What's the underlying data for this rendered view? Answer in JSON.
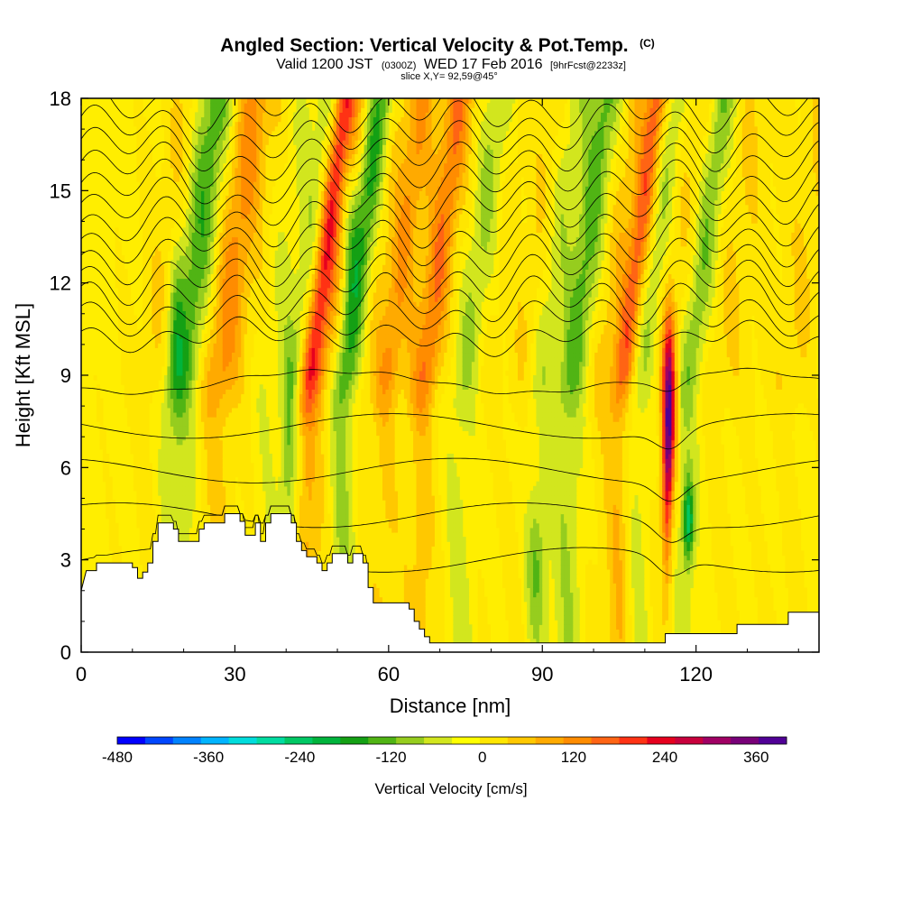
{
  "chart_data": {
    "type": "heatmap",
    "title": "Angled Section: Vertical Velocity & Pot.Temp.",
    "title_mark": "(C)",
    "subtitle_parts": [
      "Valid 1200 JST",
      "(0300Z)",
      "WED 17 Feb 2016",
      "[9hrFcst@2233z]"
    ],
    "slice_note": "slice X,Y= 92,59@45°",
    "xlabel": "Distance [nm]",
    "ylabel": "Height [Kft MSL]",
    "xlim": [
      0,
      144
    ],
    "ylim": [
      0,
      18
    ],
    "xticks": [
      0,
      30,
      60,
      90,
      120
    ],
    "yticks": [
      0,
      3,
      6,
      9,
      12,
      15,
      18
    ],
    "fill_variable": "Vertical Velocity [cm/s]",
    "contour_variable": "Potential temperature",
    "colorbar": {
      "title": "Vertical Velocity [cm/s]",
      "min": -480,
      "max": 400,
      "step": 40,
      "tick_labels": [
        -480,
        -360,
        -240,
        -120,
        0,
        120,
        240,
        360
      ],
      "colors": [
        "#0000ff",
        "#0046ff",
        "#0082ff",
        "#00b4ff",
        "#00dcdc",
        "#00dca0",
        "#00c864",
        "#00b43c",
        "#14a014",
        "#50b414",
        "#96cd1e",
        "#d2e61e",
        "#ffff00",
        "#ffe600",
        "#ffc800",
        "#ffaa00",
        "#ff8c00",
        "#ff6414",
        "#ff3214",
        "#e6001e",
        "#c8003c",
        "#a00064",
        "#780078",
        "#500096"
      ]
    },
    "bands": [
      {
        "x": 8,
        "w": 4,
        "v": 20
      },
      {
        "x": 13,
        "w": 3,
        "v": 60
      },
      {
        "x": 19,
        "w": 3.5,
        "v": -130
      },
      {
        "x": 24,
        "w": 2.5,
        "v": 70
      },
      {
        "x": 27,
        "w": 2.8,
        "v": 130
      },
      {
        "x": 31,
        "w": 3,
        "v": 40
      },
      {
        "x": 36,
        "w": 3,
        "v": -20
      },
      {
        "x": 41,
        "w": 2.5,
        "v": -60
      },
      {
        "x": 44,
        "w": 2.2,
        "v": 260
      },
      {
        "x": 47,
        "w": 2,
        "v": 80
      },
      {
        "x": 51,
        "w": 2.5,
        "v": -150
      },
      {
        "x": 55,
        "w": 2.5,
        "v": 60
      },
      {
        "x": 59,
        "w": 2.5,
        "v": 140
      },
      {
        "x": 63,
        "w": 2.5,
        "v": 60
      },
      {
        "x": 66.5,
        "w": 2.5,
        "v": 170
      },
      {
        "x": 70,
        "w": 2.5,
        "v": 30
      },
      {
        "x": 74,
        "w": 3,
        "v": -70
      },
      {
        "x": 79,
        "w": 3,
        "v": 40
      },
      {
        "x": 85,
        "w": 3,
        "v": 60
      },
      {
        "x": 89,
        "w": 3,
        "v": -50
      },
      {
        "x": 95,
        "w": 2.8,
        "v": -120
      },
      {
        "x": 101,
        "w": 3,
        "v": 80
      },
      {
        "x": 105,
        "w": 2.2,
        "v": 200
      },
      {
        "x": 108.5,
        "w": 2.5,
        "v": -70
      },
      {
        "x": 113,
        "w": 3,
        "v": 60
      },
      {
        "x": 118,
        "w": 2.5,
        "v": -100
      },
      {
        "x": 124,
        "w": 4,
        "v": 60
      },
      {
        "x": 131,
        "w": 4,
        "v": 30
      },
      {
        "x": 138,
        "w": 4,
        "v": 60
      }
    ],
    "cells": [
      {
        "x": 114.8,
        "y": 8.0,
        "w": 1.2,
        "h": 2.8,
        "v": 360
      },
      {
        "x": 114.3,
        "y": 5.0,
        "w": 1.0,
        "h": 3.2,
        "v": 180
      },
      {
        "x": 118.5,
        "y": 4.3,
        "w": 1.0,
        "h": 1.3,
        "v": -220
      },
      {
        "x": 88.8,
        "y": 2.8,
        "w": 1.8,
        "h": 2.2,
        "v": -90
      },
      {
        "x": 52.5,
        "y": 14.0,
        "w": 1.8,
        "h": 2.2,
        "v": -100
      },
      {
        "x": 18.5,
        "y": 10.5,
        "w": 1.5,
        "h": 3.0,
        "v": -80
      },
      {
        "x": 40.5,
        "y": 7.0,
        "w": 1.4,
        "h": 3.0,
        "v": -90
      }
    ],
    "terrain": [
      [
        0,
        2.0
      ],
      [
        1,
        2.65
      ],
      [
        3,
        2.65
      ],
      [
        3,
        2.9
      ],
      [
        10,
        2.9
      ],
      [
        10,
        2.75
      ],
      [
        11,
        2.75
      ],
      [
        11,
        2.4
      ],
      [
        12,
        2.4
      ],
      [
        12,
        2.6
      ],
      [
        13,
        2.6
      ],
      [
        13,
        2.9
      ],
      [
        14,
        2.9
      ],
      [
        14,
        3.6
      ],
      [
        15,
        3.6
      ],
      [
        15,
        4.2
      ],
      [
        18,
        4.2
      ],
      [
        18,
        4.0
      ],
      [
        19,
        4.0
      ],
      [
        19,
        3.6
      ],
      [
        23,
        3.6
      ],
      [
        23,
        4.0
      ],
      [
        24,
        4.0
      ],
      [
        24,
        4.2
      ],
      [
        28,
        4.2
      ],
      [
        28,
        4.5
      ],
      [
        31,
        4.5
      ],
      [
        31,
        4.25
      ],
      [
        32,
        4.25
      ],
      [
        32,
        3.8
      ],
      [
        34,
        3.8
      ],
      [
        34,
        4.2
      ],
      [
        35,
        4.2
      ],
      [
        35,
        3.6
      ],
      [
        36,
        3.6
      ],
      [
        36,
        4.2
      ],
      [
        37,
        4.2
      ],
      [
        37,
        4.5
      ],
      [
        41,
        4.5
      ],
      [
        41,
        4.2
      ],
      [
        42,
        4.2
      ],
      [
        42,
        3.6
      ],
      [
        43,
        3.6
      ],
      [
        43,
        3.3
      ],
      [
        44,
        3.3
      ],
      [
        44,
        3.1
      ],
      [
        46,
        3.1
      ],
      [
        46,
        2.9
      ],
      [
        47,
        2.9
      ],
      [
        47,
        2.65
      ],
      [
        48,
        2.65
      ],
      [
        48,
        2.9
      ],
      [
        49,
        2.9
      ],
      [
        49,
        3.2
      ],
      [
        52,
        3.2
      ],
      [
        52,
        2.9
      ],
      [
        53,
        2.9
      ],
      [
        53,
        3.2
      ],
      [
        55,
        3.2
      ],
      [
        55,
        2.9
      ],
      [
        56,
        2.9
      ],
      [
        56,
        2.1
      ],
      [
        57,
        2.1
      ],
      [
        57,
        1.6
      ],
      [
        64,
        1.6
      ],
      [
        64,
        1.4
      ],
      [
        65,
        1.4
      ],
      [
        65,
        1.0
      ],
      [
        66,
        1.0
      ],
      [
        66,
        0.75
      ],
      [
        67,
        0.75
      ],
      [
        67,
        0.5
      ],
      [
        68,
        0.5
      ],
      [
        68,
        0.3
      ],
      [
        114,
        0.3
      ],
      [
        114,
        0.6
      ],
      [
        128,
        0.6
      ],
      [
        128,
        0.9
      ],
      [
        138,
        0.9
      ],
      [
        138,
        1.3
      ],
      [
        144,
        1.3
      ],
      [
        144,
        0
      ]
    ]
  }
}
